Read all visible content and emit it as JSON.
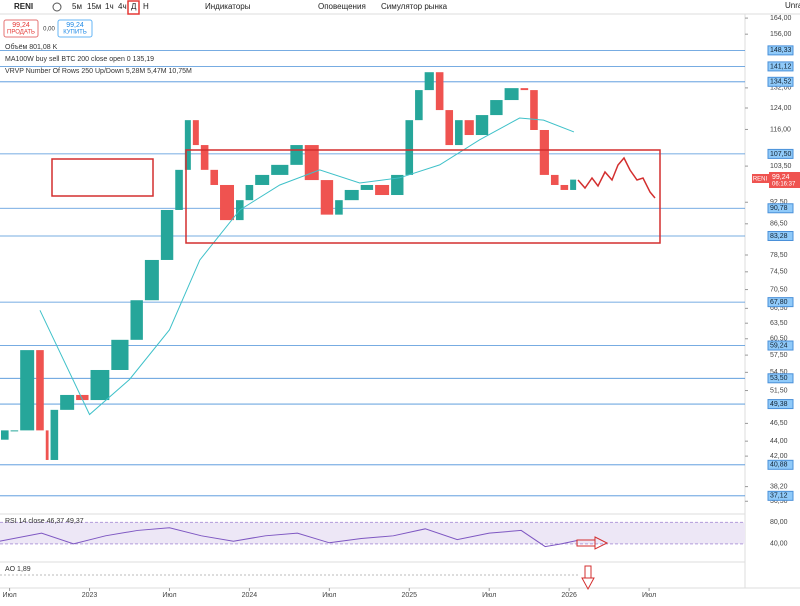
{
  "toolbar": {
    "symbol": "RENI",
    "intervals": [
      "5м",
      "15м",
      "1ч",
      "4ч",
      "Д",
      "Н"
    ],
    "indicators": "Индикаторы",
    "alerts": "Оповещения",
    "replay": "Симулятор рынка",
    "account": "Unra"
  },
  "trade": {
    "sell_price": "99,24",
    "sell": "ПРОДАТЬ",
    "spread": "0,00",
    "buy_price": "99,24",
    "buy": "КУПИТЬ"
  },
  "legend": [
    "Объём 801,08 K",
    "MA100W buy sell BTC 200 close open 0 135,19",
    "VRVP Number Of Rows 250 Up/Down 5,28M 5,47M 10,75M"
  ],
  "price_tag": {
    "symbol": "RENI",
    "price": "99,24",
    "timer": "06:16:37"
  },
  "chart_data": {
    "type": "candle-line",
    "log_scale": true,
    "xlim": [
      2022.44,
      2027.1
    ],
    "ylim": [
      35.3,
      166.1
    ],
    "xticks": [
      {
        "value": 2022.5,
        "label": "Июл"
      },
      {
        "value": 2023,
        "label": "2023"
      },
      {
        "value": 2023.5,
        "label": "Июл"
      },
      {
        "value": 2024,
        "label": "2024"
      },
      {
        "value": 2024.5,
        "label": "Июл"
      },
      {
        "value": 2025,
        "label": "2025"
      },
      {
        "value": 2025.5,
        "label": "Июл"
      },
      {
        "value": 2026,
        "label": "2026"
      },
      {
        "value": 2026.5,
        "label": "Июл"
      }
    ],
    "yticks": [
      {
        "value": 164,
        "label": "164,00"
      },
      {
        "value": 156,
        "label": "156,00"
      },
      {
        "value": 132,
        "label": "132,00"
      },
      {
        "value": 124,
        "label": "124,00"
      },
      {
        "value": 116,
        "label": "116,00"
      },
      {
        "value": 103.5,
        "label": "103,50"
      },
      {
        "value": 92.5,
        "label": "92,50"
      },
      {
        "value": 86.5,
        "label": "86,50"
      },
      {
        "value": 78.5,
        "label": "78,50"
      },
      {
        "value": 74.5,
        "label": "74,50"
      },
      {
        "value": 70.5,
        "label": "70,50"
      },
      {
        "value": 66.5,
        "label": "66,50"
      },
      {
        "value": 63.5,
        "label": "63,50"
      },
      {
        "value": 60.5,
        "label": "60,50"
      },
      {
        "value": 57.5,
        "label": "57,50"
      },
      {
        "value": 54.5,
        "label": "54,50"
      },
      {
        "value": 51.5,
        "label": "51,50"
      },
      {
        "value": 46.5,
        "label": "46,50"
      },
      {
        "value": 44,
        "label": "44,00"
      },
      {
        "value": 42,
        "label": "42,00"
      },
      {
        "value": 38.2,
        "label": "38,20"
      },
      {
        "value": 36.5,
        "label": "36,50"
      }
    ],
    "levels": [
      {
        "value": 148.33,
        "label": "148,33"
      },
      {
        "value": 141.12,
        "label": "141,12"
      },
      {
        "value": 134.52,
        "label": "134,52"
      },
      {
        "value": 107.5,
        "label": "107,50"
      },
      {
        "value": 90.78,
        "label": "90,78"
      },
      {
        "value": 83.28,
        "label": "83,28"
      },
      {
        "value": 67.8,
        "label": "67,80"
      },
      {
        "value": 59.24,
        "label": "59,24"
      },
      {
        "value": 53.5,
        "label": "53,50"
      },
      {
        "value": 49.38,
        "label": "49,38"
      },
      {
        "value": 40.88,
        "label": "40,88"
      },
      {
        "value": 37.12,
        "label": "37,12"
      }
    ],
    "level_color": "#4a90d9",
    "series": [
      {
        "name": "RENI",
        "up_color": "#26a69a",
        "down_color": "#ef5350",
        "x": [
          2022.44,
          2022.5,
          2022.56,
          2022.66,
          2022.72,
          2022.75,
          2022.81,
          2022.91,
          2023.0,
          2023.13,
          2023.25,
          2023.34,
          2023.44,
          2023.53,
          2023.59,
          2023.64,
          2023.69,
          2023.75,
          2023.81,
          2023.91,
          2023.97,
          2024.03,
          2024.13,
          2024.25,
          2024.34,
          2024.44,
          2024.53,
          2024.59,
          2024.69,
          2024.78,
          2024.88,
          2024.97,
          2025.03,
          2025.09,
          2025.16,
          2025.22,
          2025.28,
          2025.34,
          2025.41,
          2025.5,
          2025.59,
          2025.69,
          2025.75,
          2025.81,
          2025.88,
          2025.94,
          2026.0,
          2026.05
        ],
        "values": [
          44.2,
          45.5,
          45.5,
          58.4,
          45.5,
          41.5,
          48.5,
          50.8,
          50.0,
          54.9,
          60.3,
          68.2,
          77.3,
          90.3,
          102.3,
          119.4,
          110.5,
          102.3,
          97.6,
          87.5,
          93.1,
          97.6,
          100.7,
          103.9,
          110.5,
          99.1,
          89.0,
          93.1,
          96.1,
          97.6,
          94.6,
          100.7,
          119.4,
          131.1,
          138.6,
          123.2,
          110.5,
          119.4,
          114.0,
          121.3,
          127.1,
          131.9,
          131.1,
          115.8,
          100.7,
          97.6,
          96.1,
          99.24
        ]
      },
      {
        "name": "MA100W",
        "color": "#3fc1c9",
        "x": [
          2022.69,
          2023.0,
          2023.25,
          2023.5,
          2023.69,
          2023.94,
          2024.19,
          2024.44,
          2024.69,
          2024.94,
          2025.19,
          2025.44,
          2025.69,
          2025.84,
          2026.03
        ],
        "values": [
          66.1,
          47.8,
          53.3,
          62.2,
          77.3,
          90.3,
          97.6,
          102.3,
          98.2,
          99.8,
          103.9,
          112.3,
          120.2,
          119.4,
          115.1
        ]
      }
    ],
    "rsi": {
      "title": "RSI 14 close 46,37 49,37",
      "color": "#7e57c2",
      "ylim": [
        10,
        90
      ],
      "yticks": [
        {
          "value": 80,
          "label": "80,00"
        },
        {
          "value": 40,
          "label": "40,00"
        }
      ],
      "x": [
        2022.44,
        2022.7,
        2022.9,
        2023.1,
        2023.3,
        2023.5,
        2023.7,
        2023.9,
        2024.1,
        2024.3,
        2024.5,
        2024.7,
        2024.9,
        2025.1,
        2025.3,
        2025.5,
        2025.7,
        2025.85,
        2025.95,
        2026.05
      ],
      "values": [
        45,
        60,
        40,
        55,
        65,
        70,
        55,
        45,
        55,
        60,
        42,
        50,
        55,
        68,
        48,
        60,
        65,
        35,
        40,
        46.37
      ]
    },
    "ao": {
      "title": "AO 1,89"
    }
  }
}
